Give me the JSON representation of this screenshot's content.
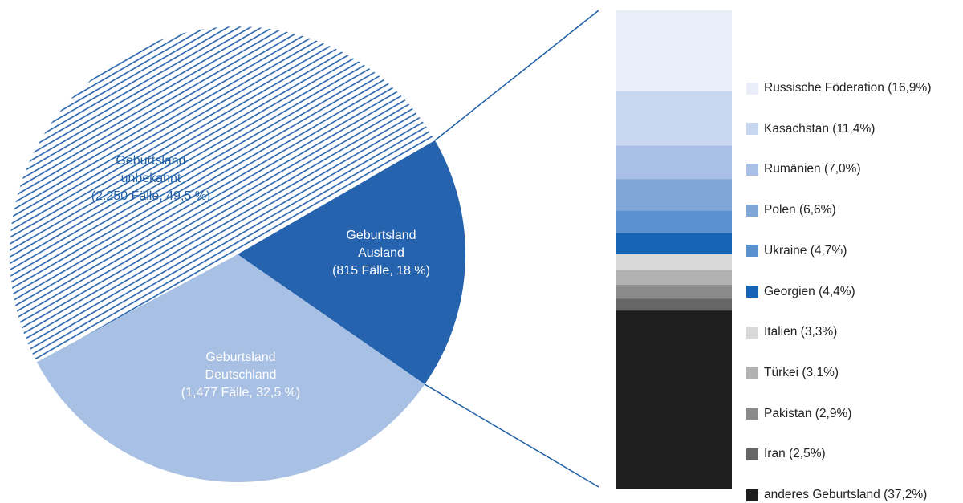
{
  "chart_data": [
    {
      "type": "pie",
      "slices": [
        {
          "label": [
            "Geburtsland",
            "unbekannt",
            "(2.250 Fälle, 49,5 %)"
          ],
          "count": 2250,
          "percent": 49.5,
          "color": "#1f5fa8",
          "pattern": "hatched"
        },
        {
          "label": [
            "Geburtsland",
            "Ausland",
            "(815 Fälle, 18 %)"
          ],
          "count": 815,
          "percent": 18.0,
          "color": "#2563ae",
          "pattern": "solid"
        },
        {
          "label": [
            "Geburtsland",
            "Deutschland",
            "(1,477 Fälle, 32,5 %)"
          ],
          "count": 1477,
          "percent": 32.5,
          "color": "#a8c0e4",
          "pattern": "solid"
        }
      ]
    },
    {
      "type": "bar",
      "stacked": true,
      "breakdown_of": "Geburtsland Ausland",
      "categories": [
        "Russische Föderation",
        "Kasachstan",
        "Rumänien",
        "Polen",
        "Ukraine",
        "Georgien",
        "Italien",
        "Türkei",
        "Pakistan",
        "Iran",
        "anderes Geburtsland"
      ],
      "values": [
        16.9,
        11.4,
        7.0,
        6.6,
        4.7,
        4.4,
        3.3,
        3.1,
        2.9,
        2.5,
        37.2
      ],
      "legend_labels": [
        "Russische Föderation (16,9%)",
        "Kasachstan (11,4%)",
        "Rumänien (7,0%)",
        "Polen (6,6%)",
        "Ukraine (4,7%)",
        "Georgien (4,4%)",
        "Italien (3,3%)",
        "Türkei (3,1%)",
        "Pakistan (2,9%)",
        "Iran (2,5%)",
        "anderes Geburtsland (37,2%)"
      ],
      "colors": [
        "#e8edf8",
        "#c9d6ef",
        "#a9bfe5",
        "#80a6d8",
        "#5b91cf",
        "#1565b4",
        "#d9d9d9",
        "#b1b1b1",
        "#8a8a8a",
        "#666666",
        "#1e1e1e"
      ],
      "legend_position": "right"
    }
  ]
}
